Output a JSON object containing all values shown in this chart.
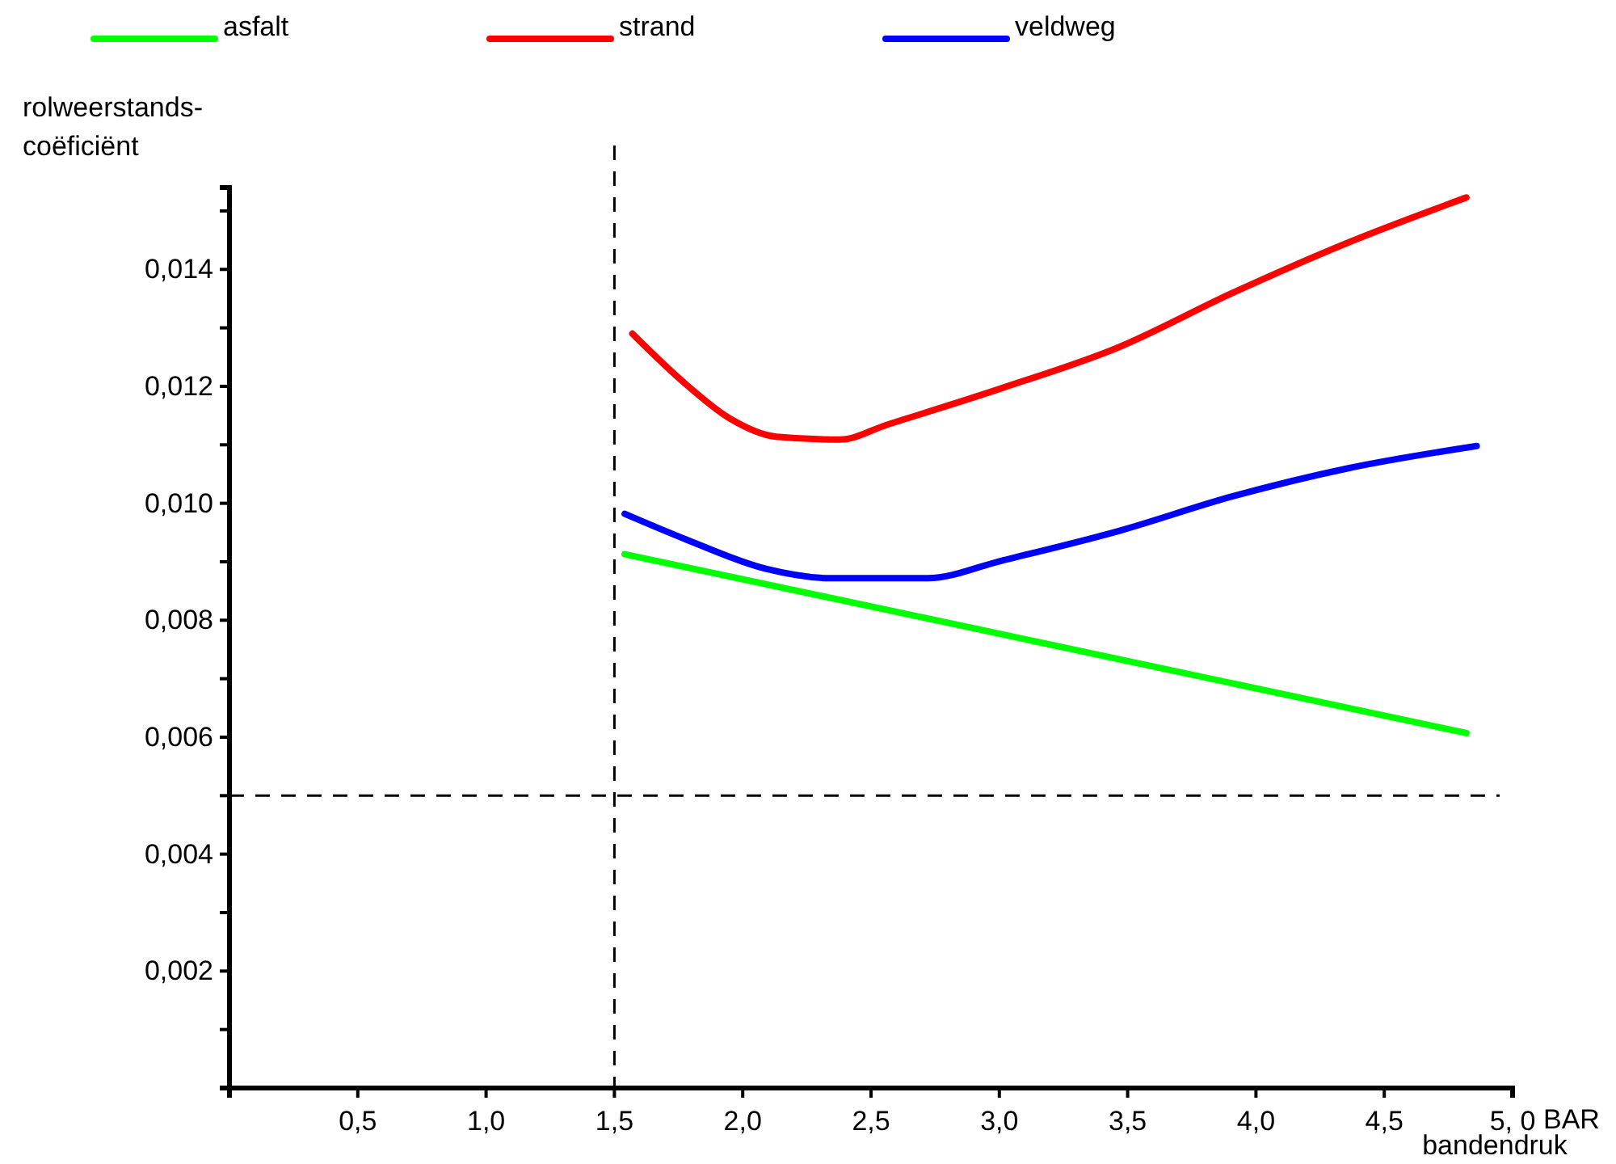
{
  "chart_data": {
    "type": "line",
    "xlabel": "bandendruk",
    "ylabel": "rolweerstands-\ncoëficiënt",
    "legend": "top",
    "marker": "none",
    "line_style": "solid",
    "grid": false,
    "xlim": [
      0,
      5.0
    ],
    "ylim": [
      0,
      0.0154
    ],
    "xticks": [
      {
        "value": 0.5,
        "label": "0,5"
      },
      {
        "value": 1.0,
        "label": "1,0"
      },
      {
        "value": 1.5,
        "label": "1,5"
      },
      {
        "value": 2.0,
        "label": "2,0"
      },
      {
        "value": 2.5,
        "label": "2,5"
      },
      {
        "value": 3.0,
        "label": "3,0"
      },
      {
        "value": 3.5,
        "label": "3,5"
      },
      {
        "value": 4.0,
        "label": "4,0"
      },
      {
        "value": 4.5,
        "label": "4,5"
      },
      {
        "value": 5.0,
        "label": "5, 0"
      }
    ],
    "yticks": [
      {
        "value": 0.001,
        "label": null
      },
      {
        "value": 0.002,
        "label": "0,002"
      },
      {
        "value": 0.003,
        "label": null
      },
      {
        "value": 0.004,
        "label": "0,004"
      },
      {
        "value": 0.005,
        "label": null
      },
      {
        "value": 0.006,
        "label": "0,006"
      },
      {
        "value": 0.007,
        "label": null
      },
      {
        "value": 0.008,
        "label": "0,008"
      },
      {
        "value": 0.009,
        "label": null
      },
      {
        "value": 0.01,
        "label": "0,010"
      },
      {
        "value": 0.011,
        "label": null
      },
      {
        "value": 0.012,
        "label": "0,012"
      },
      {
        "value": 0.013,
        "label": null
      },
      {
        "value": 0.014,
        "label": "0,014"
      },
      {
        "value": 0.015,
        "label": null
      }
    ],
    "ref_lines": [
      {
        "axis": "x",
        "value": 1.5,
        "line_style": "dashed",
        "color": "#000000"
      },
      {
        "axis": "y",
        "value": 0.005,
        "line_style": "dashed",
        "color": "#000000"
      }
    ],
    "annotations": [
      "BAR"
    ],
    "series": [
      {
        "name": "asfalt",
        "color": "#00ff00",
        "x": [
          1.54,
          3.01,
          4.82
        ],
        "values": [
          0.00913,
          0.00776,
          0.00607
        ]
      },
      {
        "name": "strand",
        "color": "#ff0000",
        "x": [
          1.57,
          1.78,
          1.95,
          2.13,
          2.38,
          2.56,
          3.01,
          3.46,
          3.91,
          4.36,
          4.82
        ],
        "values": [
          0.0129,
          0.01203,
          0.01145,
          0.01114,
          0.01109,
          0.01134,
          0.01197,
          0.01266,
          0.0136,
          0.01446,
          0.01523
        ]
      },
      {
        "name": "veldweg",
        "color": "#0000ff",
        "x": [
          1.54,
          1.78,
          2.09,
          2.34,
          2.72,
          3.01,
          3.46,
          3.91,
          4.36,
          4.86
        ],
        "values": [
          0.00982,
          0.00938,
          0.00888,
          0.00872,
          0.00872,
          0.00902,
          0.00952,
          0.01012,
          0.0106,
          0.01098
        ]
      }
    ]
  }
}
